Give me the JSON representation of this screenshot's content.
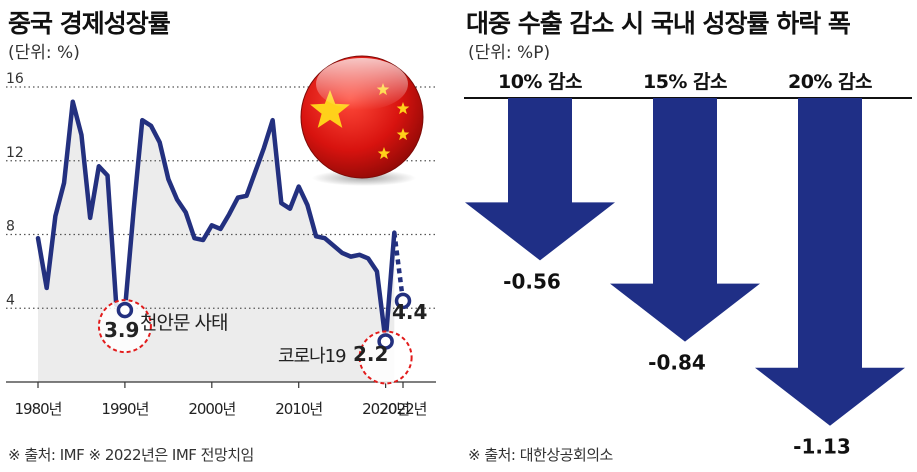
{
  "left_chart": {
    "title": "중국 경제성장률",
    "unit": "(단위: %)",
    "source": "※ 출처: IMF   ※ 2022년은 IMF 전망치임",
    "annotations": {
      "tiananmen_label": "천안문 사태",
      "covid_label": "코로나19",
      "value_1990": "3.9",
      "value_2020": "2.2",
      "value_2022": "4.4"
    }
  },
  "right_chart": {
    "title": "대중 수출 감소 시 국내 성장률 하락 폭",
    "unit": "(단위: %P)",
    "source": "※ 출처: 대한상공회의소"
  },
  "chart_data": [
    {
      "type": "line",
      "title": "중국 경제성장률",
      "ylabel": "(단위: %)",
      "ylim": [
        0,
        16
      ],
      "y_ticks": [
        "4",
        "8",
        "12",
        "16"
      ],
      "x_tick_labels": [
        "1980년",
        "1990년",
        "2000년",
        "2010년",
        "2020년",
        "2022년"
      ],
      "grid": "horizontal dotted",
      "colors": {
        "line": "#23307f",
        "area": "#ececec",
        "highlight": "#e21b1b"
      },
      "x": [
        1980,
        1981,
        1982,
        1983,
        1984,
        1985,
        1986,
        1987,
        1988,
        1989,
        1990,
        1991,
        1992,
        1993,
        1994,
        1995,
        1996,
        1997,
        1998,
        1999,
        2000,
        2001,
        2002,
        2003,
        2004,
        2005,
        2006,
        2007,
        2008,
        2009,
        2010,
        2011,
        2012,
        2013,
        2014,
        2015,
        2016,
        2017,
        2018,
        2019,
        2020,
        2021
      ],
      "values": [
        7.8,
        5.1,
        9.0,
        10.8,
        15.2,
        13.4,
        8.9,
        11.7,
        11.2,
        4.2,
        3.9,
        9.3,
        14.2,
        13.9,
        13.0,
        11.0,
        9.9,
        9.2,
        7.8,
        7.7,
        8.5,
        8.3,
        9.1,
        10.0,
        10.1,
        11.4,
        12.7,
        14.2,
        9.7,
        9.4,
        10.6,
        9.6,
        7.9,
        7.8,
        7.4,
        7.0,
        6.8,
        6.9,
        6.7,
        6.0,
        2.2,
        8.1
      ],
      "forecast": {
        "x": [
          2021,
          2022
        ],
        "values": [
          8.1,
          4.4
        ]
      }
    },
    {
      "type": "bar",
      "title": "대중 수출 감소 시 국내 성장률 하락 폭",
      "ylabel": "(단위: %P)",
      "categories": [
        "10% 감소",
        "15% 감소",
        "20% 감소"
      ],
      "values": [
        -0.56,
        -0.84,
        -1.13
      ],
      "value_labels": [
        "-0.56",
        "-0.84",
        "-1.13"
      ],
      "style": "downward arrows",
      "colors": {
        "arrow": "#1f2f86"
      }
    }
  ]
}
